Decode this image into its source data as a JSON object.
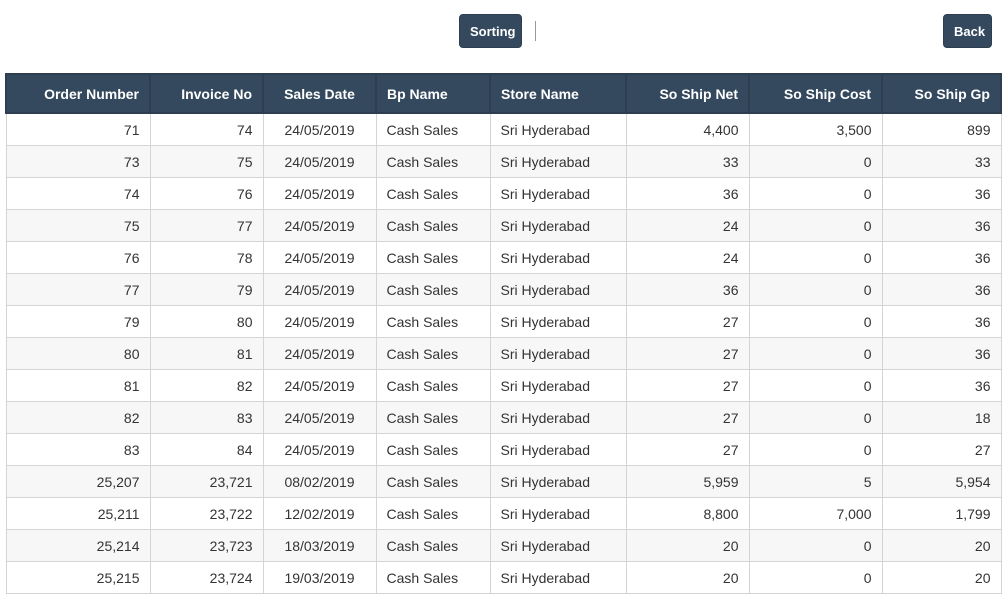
{
  "toolbar": {
    "sorting_label": "Sorting",
    "back_label": "Back"
  },
  "colors": {
    "header_bg": "#34495e",
    "button_bg": "#34495e"
  },
  "table": {
    "columns": [
      "Order Number",
      "Invoice No",
      "Sales Date",
      "Bp Name",
      "Store Name",
      "So Ship Net",
      "So Ship Cost",
      "So Ship Gp"
    ],
    "rows": [
      [
        "71",
        "74",
        "24/05/2019",
        "Cash Sales",
        "Sri Hyderabad",
        "4,400",
        "3,500",
        "899"
      ],
      [
        "73",
        "75",
        "24/05/2019",
        "Cash Sales",
        "Sri Hyderabad",
        "33",
        "0",
        "33"
      ],
      [
        "74",
        "76",
        "24/05/2019",
        "Cash Sales",
        "Sri Hyderabad",
        "36",
        "0",
        "36"
      ],
      [
        "75",
        "77",
        "24/05/2019",
        "Cash Sales",
        "Sri Hyderabad",
        "24",
        "0",
        "36"
      ],
      [
        "76",
        "78",
        "24/05/2019",
        "Cash Sales",
        "Sri Hyderabad",
        "24",
        "0",
        "36"
      ],
      [
        "77",
        "79",
        "24/05/2019",
        "Cash Sales",
        "Sri Hyderabad",
        "36",
        "0",
        "36"
      ],
      [
        "79",
        "80",
        "24/05/2019",
        "Cash Sales",
        "Sri Hyderabad",
        "27",
        "0",
        "36"
      ],
      [
        "80",
        "81",
        "24/05/2019",
        "Cash Sales",
        "Sri Hyderabad",
        "27",
        "0",
        "36"
      ],
      [
        "81",
        "82",
        "24/05/2019",
        "Cash Sales",
        "Sri Hyderabad",
        "27",
        "0",
        "36"
      ],
      [
        "82",
        "83",
        "24/05/2019",
        "Cash Sales",
        "Sri Hyderabad",
        "27",
        "0",
        "18"
      ],
      [
        "83",
        "84",
        "24/05/2019",
        "Cash Sales",
        "Sri Hyderabad",
        "27",
        "0",
        "27"
      ],
      [
        "25,207",
        "23,721",
        "08/02/2019",
        "Cash Sales",
        "Sri Hyderabad",
        "5,959",
        "5",
        "5,954"
      ],
      [
        "25,211",
        "23,722",
        "12/02/2019",
        "Cash Sales",
        "Sri Hyderabad",
        "8,800",
        "7,000",
        "1,799"
      ],
      [
        "25,214",
        "23,723",
        "18/03/2019",
        "Cash Sales",
        "Sri Hyderabad",
        "20",
        "0",
        "20"
      ],
      [
        "25,215",
        "23,724",
        "19/03/2019",
        "Cash Sales",
        "Sri Hyderabad",
        "20",
        "0",
        "20"
      ]
    ]
  }
}
